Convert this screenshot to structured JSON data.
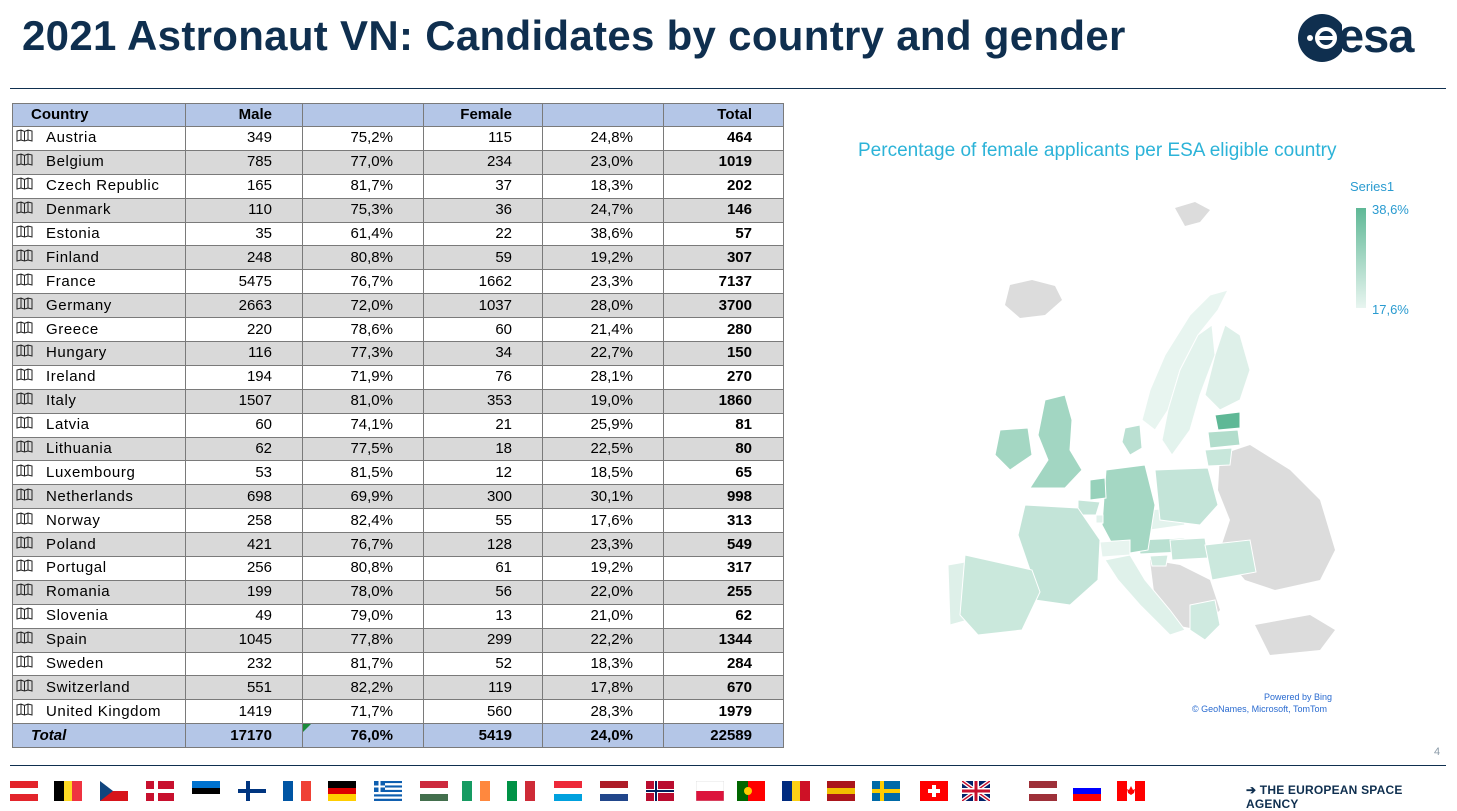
{
  "header": {
    "title": "2021 Astronaut VN: Candidates by country and gender",
    "logo_text": "esa"
  },
  "table": {
    "headers": {
      "country": "Country",
      "male": "Male",
      "female": "Female",
      "total": "Total"
    },
    "rows": [
      {
        "country": "Austria",
        "male": "349",
        "male_pct": "75,2%",
        "female": "115",
        "female_pct": "24,8%",
        "total": "464"
      },
      {
        "country": "Belgium",
        "male": "785",
        "male_pct": "77,0%",
        "female": "234",
        "female_pct": "23,0%",
        "total": "1019"
      },
      {
        "country": "Czech Republic",
        "male": "165",
        "male_pct": "81,7%",
        "female": "37",
        "female_pct": "18,3%",
        "total": "202"
      },
      {
        "country": "Denmark",
        "male": "110",
        "male_pct": "75,3%",
        "female": "36",
        "female_pct": "24,7%",
        "total": "146"
      },
      {
        "country": "Estonia",
        "male": "35",
        "male_pct": "61,4%",
        "female": "22",
        "female_pct": "38,6%",
        "total": "57"
      },
      {
        "country": "Finland",
        "male": "248",
        "male_pct": "80,8%",
        "female": "59",
        "female_pct": "19,2%",
        "total": "307"
      },
      {
        "country": "France",
        "male": "5475",
        "male_pct": "76,7%",
        "female": "1662",
        "female_pct": "23,3%",
        "total": "7137"
      },
      {
        "country": "Germany",
        "male": "2663",
        "male_pct": "72,0%",
        "female": "1037",
        "female_pct": "28,0%",
        "total": "3700"
      },
      {
        "country": "Greece",
        "male": "220",
        "male_pct": "78,6%",
        "female": "60",
        "female_pct": "21,4%",
        "total": "280"
      },
      {
        "country": "Hungary",
        "male": "116",
        "male_pct": "77,3%",
        "female": "34",
        "female_pct": "22,7%",
        "total": "150"
      },
      {
        "country": "Ireland",
        "male": "194",
        "male_pct": "71,9%",
        "female": "76",
        "female_pct": "28,1%",
        "total": "270"
      },
      {
        "country": "Italy",
        "male": "1507",
        "male_pct": "81,0%",
        "female": "353",
        "female_pct": "19,0%",
        "total": "1860"
      },
      {
        "country": "Latvia",
        "male": "60",
        "male_pct": "74,1%",
        "female": "21",
        "female_pct": "25,9%",
        "total": "81"
      },
      {
        "country": "Lithuania",
        "male": "62",
        "male_pct": "77,5%",
        "female": "18",
        "female_pct": "22,5%",
        "total": "80"
      },
      {
        "country": "Luxembourg",
        "male": "53",
        "male_pct": "81,5%",
        "female": "12",
        "female_pct": "18,5%",
        "total": "65"
      },
      {
        "country": "Netherlands",
        "male": "698",
        "male_pct": "69,9%",
        "female": "300",
        "female_pct": "30,1%",
        "total": "998"
      },
      {
        "country": "Norway",
        "male": "258",
        "male_pct": "82,4%",
        "female": "55",
        "female_pct": "17,6%",
        "total": "313"
      },
      {
        "country": "Poland",
        "male": "421",
        "male_pct": "76,7%",
        "female": "128",
        "female_pct": "23,3%",
        "total": "549"
      },
      {
        "country": "Portugal",
        "male": "256",
        "male_pct": "80,8%",
        "female": "61",
        "female_pct": "19,2%",
        "total": "317"
      },
      {
        "country": "Romania",
        "male": "199",
        "male_pct": "78,0%",
        "female": "56",
        "female_pct": "22,0%",
        "total": "255"
      },
      {
        "country": "Slovenia",
        "male": "49",
        "male_pct": "79,0%",
        "female": "13",
        "female_pct": "21,0%",
        "total": "62"
      },
      {
        "country": "Spain",
        "male": "1045",
        "male_pct": "77,8%",
        "female": "299",
        "female_pct": "22,2%",
        "total": "1344"
      },
      {
        "country": "Sweden",
        "male": "232",
        "male_pct": "81,7%",
        "female": "52",
        "female_pct": "18,3%",
        "total": "284"
      },
      {
        "country": "Switzerland",
        "male": "551",
        "male_pct": "82,2%",
        "female": "119",
        "female_pct": "17,8%",
        "total": "670"
      },
      {
        "country": "United Kingdom",
        "male": "1419",
        "male_pct": "71,7%",
        "female": "560",
        "female_pct": "28,3%",
        "total": "1979"
      }
    ],
    "footer": {
      "label": "Total",
      "male": "17170",
      "male_pct": "76,0%",
      "female": "5419",
      "female_pct": "24,0%",
      "total": "22589"
    }
  },
  "chart_data": {
    "type": "table",
    "title": "Percentage of female applicants per ESA eligible country",
    "series_name": "Series1",
    "legend_max": "38,6%",
    "legend_min": "17,6%",
    "color_scale": [
      "#e8f5f0",
      "#5fb896"
    ],
    "no_data_color": "#dcdcdc",
    "countries": [
      "Austria",
      "Belgium",
      "Czech Republic",
      "Denmark",
      "Estonia",
      "Finland",
      "France",
      "Germany",
      "Greece",
      "Hungary",
      "Ireland",
      "Italy",
      "Latvia",
      "Lithuania",
      "Luxembourg",
      "Netherlands",
      "Norway",
      "Poland",
      "Portugal",
      "Romania",
      "Slovenia",
      "Spain",
      "Sweden",
      "Switzerland",
      "United Kingdom"
    ],
    "values": [
      24.8,
      23.0,
      18.3,
      24.7,
      38.6,
      19.2,
      23.3,
      28.0,
      21.4,
      22.7,
      28.1,
      19.0,
      25.9,
      22.5,
      18.5,
      30.1,
      17.6,
      23.3,
      19.2,
      22.0,
      21.0,
      22.2,
      18.3,
      17.8,
      28.3
    ]
  },
  "map": {
    "attribution_1": "Powered by Bing",
    "attribution_2": "© GeoNames, Microsoft, TomTom"
  },
  "footer": {
    "page_number": "4",
    "agency": "THE EUROPEAN SPACE AGENCY",
    "flags": [
      "Austria",
      "Belgium",
      "Czech Republic",
      "Denmark",
      "Estonia",
      "Finland",
      "France",
      "Germany",
      "Greece",
      "Hungary",
      "Ireland",
      "Italy",
      "Luxembourg",
      "Netherlands",
      "Norway",
      "Poland",
      "Portugal",
      "Romania",
      "Spain",
      "Sweden",
      "Switzerland",
      "United Kingdom",
      "Latvia",
      "Slovenia",
      "Canada"
    ]
  }
}
